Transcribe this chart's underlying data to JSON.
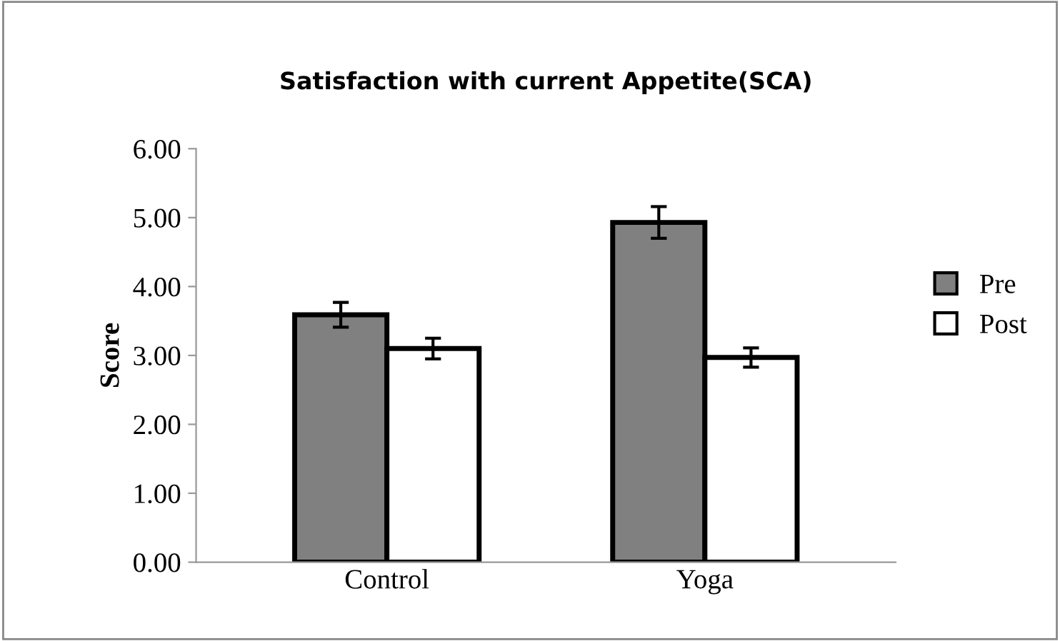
{
  "chart_data": {
    "type": "bar",
    "title": "Satisfaction with current Appetite(SCA)",
    "ylabel": "Score",
    "categories": [
      "Control",
      "Yoga"
    ],
    "series": [
      {
        "name": "Pre",
        "color": "#808080",
        "values": [
          3.59,
          4.93
        ],
        "errors": [
          0.18,
          0.23
        ]
      },
      {
        "name": "Post",
        "color": "#ffffff",
        "values": [
          3.1,
          2.97
        ],
        "errors": [
          0.15,
          0.14
        ]
      }
    ],
    "ylim": [
      0,
      6
    ],
    "yticks": [
      {
        "value": 0,
        "label": "0.00"
      },
      {
        "value": 1,
        "label": "1.00"
      },
      {
        "value": 2,
        "label": "2.00"
      },
      {
        "value": 3,
        "label": "3.00"
      },
      {
        "value": 4,
        "label": "4.00"
      },
      {
        "value": 5,
        "label": "5.00"
      },
      {
        "value": 6,
        "label": "6.00"
      }
    ],
    "grid": false,
    "legend": "right"
  }
}
